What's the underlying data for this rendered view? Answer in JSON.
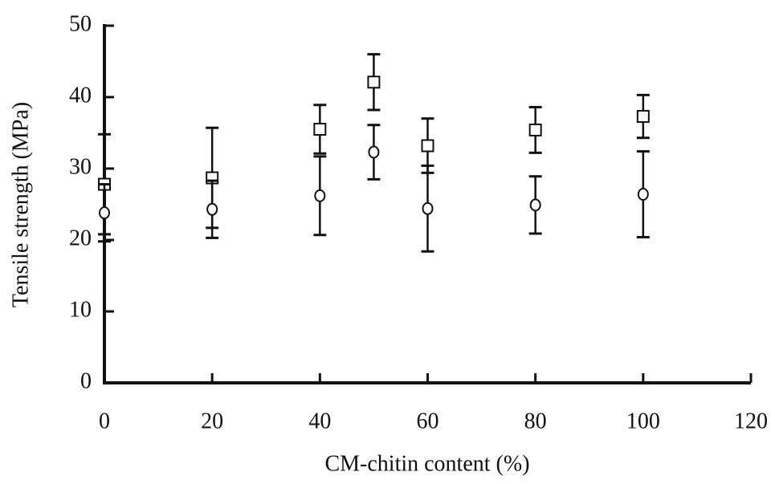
{
  "chart_data": {
    "type": "scatter",
    "x_label": "CM-chitin content (%)",
    "y_label": "Tensile strength (MPa)",
    "xlim": [
      0,
      120
    ],
    "xticks": [
      0,
      20,
      40,
      60,
      80,
      100,
      120
    ],
    "ylim": [
      0,
      50
    ],
    "yticks": [
      0,
      10,
      20,
      30,
      40,
      50
    ],
    "color": "#111111",
    "series": [
      {
        "marker": "square",
        "x": [
          0,
          20,
          40,
          50,
          60,
          80,
          100
        ],
        "values": [
          27.8,
          28.7,
          35.5,
          42.1,
          33.2,
          35.4,
          37.3
        ],
        "errors": [
          7,
          7,
          3.4,
          3.9,
          3.8,
          3.2,
          3
        ]
      },
      {
        "marker": "circle",
        "x": [
          0,
          20,
          40,
          50,
          60,
          80,
          100
        ],
        "values": [
          23.8,
          24.3,
          26.2,
          32.3,
          24.4,
          24.9,
          26.4
        ],
        "errors": [
          4,
          4,
          5.5,
          3.8,
          6,
          4,
          6
        ]
      }
    ]
  }
}
